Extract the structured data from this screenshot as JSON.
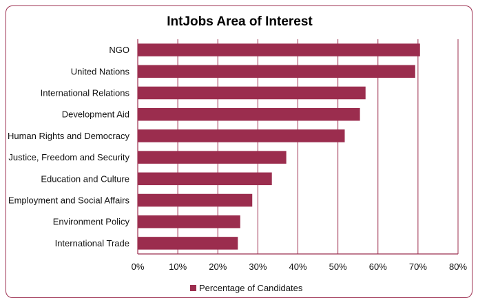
{
  "chart_data": {
    "type": "bar",
    "orientation": "horizontal",
    "title": "IntJobs Area of Interest",
    "categories": [
      "NGO",
      "United Nations",
      "International Relations",
      "Development Aid",
      "Human Rights and Democracy",
      "Justice, Freedom and Security",
      "Education and Culture",
      "Employment and Social Affairs",
      "Environment Policy",
      "International Trade"
    ],
    "series": [
      {
        "name": "Percentage of Candidates",
        "values": [
          0.705,
          0.693,
          0.569,
          0.555,
          0.517,
          0.371,
          0.335,
          0.286,
          0.256,
          0.25
        ],
        "color": "#9B2D4E"
      }
    ],
    "xlim": [
      0,
      0.8
    ],
    "x_ticks": [
      "0%",
      "10%",
      "20%",
      "30%",
      "40%",
      "50%",
      "60%",
      "70%",
      "80%"
    ],
    "grid": "vertical",
    "legend": "bottom",
    "border_color": "#9B2D4E"
  }
}
